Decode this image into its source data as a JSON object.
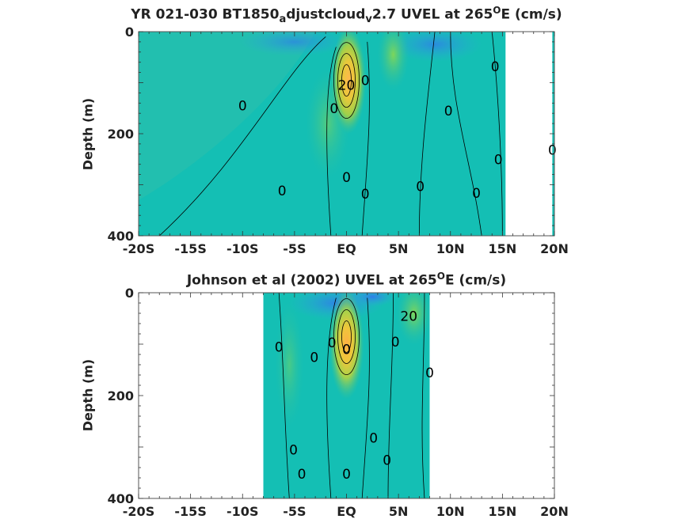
{
  "chart_data": [
    {
      "type": "heatmap",
      "title_main": "YR 021-030 BT1850",
      "title_sub1": "a",
      "title_mid": "djustcloud",
      "title_sub2": "v",
      "title_tail": "2.7 UVEL at 265",
      "title_sup": "O",
      "title_end": "E (cm/s)",
      "ylabel": "Depth (m)",
      "xlabel": "",
      "x_ticks": [
        "-20S",
        "-15S",
        "-10S",
        "-5S",
        "EQ",
        "5N",
        "10N",
        "15N",
        "20N"
      ],
      "x_tick_values": [
        -20,
        -15,
        -10,
        -5,
        0,
        5,
        10,
        15,
        20
      ],
      "y_ticks": [
        "0",
        "200",
        "400"
      ],
      "y_tick_values": [
        0,
        200,
        400
      ],
      "xlim": [
        -20,
        20
      ],
      "ylim": [
        0,
        400
      ],
      "y_reversed": true,
      "data_lat_range": [
        -20,
        15.3
      ],
      "core": {
        "lat": 0,
        "depth": 80,
        "max_value": 45
      },
      "contour_labels": [
        {
          "text": "0",
          "lat": -10,
          "depth": 145
        },
        {
          "text": "0",
          "lat": -6.2,
          "depth": 312
        },
        {
          "text": "0",
          "lat": -1.2,
          "depth": 150
        },
        {
          "text": "0",
          "lat": 0,
          "depth": 285
        },
        {
          "text": "0",
          "lat": 1.8,
          "depth": 318
        },
        {
          "text": "0",
          "lat": 1.8,
          "depth": 95
        },
        {
          "text": "0",
          "lat": 7.1,
          "depth": 303
        },
        {
          "text": "0",
          "lat": 9.8,
          "depth": 155
        },
        {
          "text": "0",
          "lat": 12.5,
          "depth": 316
        },
        {
          "text": "0",
          "lat": 14.6,
          "depth": 250
        },
        {
          "text": "0",
          "lat": 14.3,
          "depth": 68
        },
        {
          "text": "0",
          "lat": 19.8,
          "depth": 232
        },
        {
          "text": "20",
          "lat": 0,
          "depth": 105
        }
      ]
    },
    {
      "type": "heatmap",
      "title_main": "Johnson et al (2002) UVEL at 265",
      "title_sup": "O",
      "title_end": "E (cm/s)",
      "ylabel": "Depth (m)",
      "xlabel": "",
      "x_ticks": [
        "-20S",
        "-15S",
        "-10S",
        "-5S",
        "EQ",
        "5N",
        "10N",
        "15N",
        "20N"
      ],
      "x_tick_values": [
        -20,
        -15,
        -10,
        -5,
        0,
        5,
        10,
        15,
        20
      ],
      "y_ticks": [
        "0",
        "200",
        "400"
      ],
      "y_tick_values": [
        0,
        200,
        400
      ],
      "xlim": [
        -20,
        20
      ],
      "ylim": [
        0,
        400
      ],
      "y_reversed": true,
      "data_lat_range": [
        -8,
        8
      ],
      "core": {
        "lat": 0,
        "depth": 70,
        "max_value": 55
      },
      "contour_labels": [
        {
          "text": "0",
          "lat": -6.5,
          "depth": 105
        },
        {
          "text": "0",
          "lat": -3.1,
          "depth": 125
        },
        {
          "text": "0",
          "lat": -1.4,
          "depth": 97
        },
        {
          "text": "0",
          "lat": 0,
          "depth": 110
        },
        {
          "text": "0",
          "lat": 4.7,
          "depth": 95
        },
        {
          "text": "0",
          "lat": 8,
          "depth": 155
        },
        {
          "text": "0",
          "lat": 2.6,
          "depth": 282
        },
        {
          "text": "0",
          "lat": 3.9,
          "depth": 325
        },
        {
          "text": "0",
          "lat": -5.1,
          "depth": 305
        },
        {
          "text": "0",
          "lat": -4.3,
          "depth": 352
        },
        {
          "text": "0",
          "lat": 0,
          "depth": 352
        },
        {
          "text": "20",
          "lat": 6,
          "depth": 45
        }
      ]
    }
  ]
}
